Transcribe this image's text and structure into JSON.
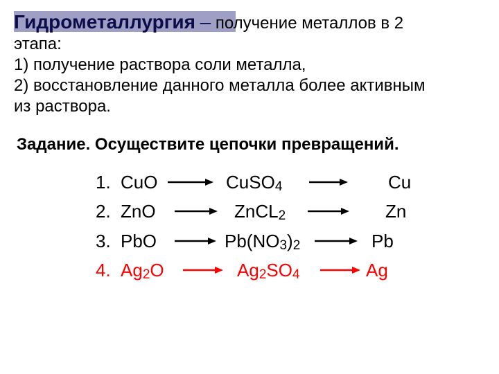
{
  "header": {
    "term": "Гидрометаллургия",
    "dash": "–",
    "definition_line1": "получение металлов в 2",
    "line2": "этапа:",
    "line3": "1) получение раствора соли металла,",
    "line4": "2) восстановление данного металла более активным",
    "line5": "из раствора."
  },
  "task": "Задание. Осуществите цепочки превращений.",
  "chains": [
    {
      "num": "1.",
      "c1_pre": "CuO",
      "c1_sub": "",
      "c2_pre": "CuSO",
      "c2_sub": "4",
      "c2_post": "",
      "c3_pre": "Cu",
      "c3_sub": "",
      "c3_post": "",
      "color": "#000000",
      "w_num": 34,
      "gap_num": 2,
      "w_c1": 62,
      "w_a1": 78,
      "pad_a1_l": 6,
      "pad_a1_r": 6,
      "w_c2": 118,
      "pad_c2_l": 0,
      "w_a2": 86,
      "pad_a2_l": 2,
      "pad_a2_r": 28,
      "w_c3": 60,
      "arrow1_len": 66,
      "arrow2_len": 56
    },
    {
      "num": "2.",
      "c1_pre": "ZnO",
      "c1_sub": "",
      "c2_pre": "ZnCL",
      "c2_sub": "2",
      "c2_post": "",
      "c3_pre": "Zn",
      "c3_sub": "",
      "c3_post": "",
      "color": "#000000",
      "w_num": 34,
      "gap_num": 2,
      "w_c1": 70,
      "w_a1": 78,
      "pad_a1_l": 8,
      "pad_a1_r": 8,
      "w_c2": 106,
      "pad_c2_l": 0,
      "w_a2": 86,
      "pad_a2_l": 0,
      "pad_a2_r": 26,
      "w_c3": 60,
      "arrow1_len": 62,
      "arrow2_len": 60
    },
    {
      "num": "3.",
      "c1_pre": "PbO",
      "c1_sub": "",
      "c2_pre": "Pb(NO",
      "c2_sub": "3",
      "c2_post": ")",
      "c2b_sub": "2",
      "c3_pre": "Pb",
      "c3_sub": "",
      "c3_post": "",
      "color": "#000000",
      "w_num": 34,
      "gap_num": 2,
      "w_c1": 70,
      "w_a1": 70,
      "pad_a1_l": 8,
      "pad_a1_r": 2,
      "w_c2": 130,
      "pad_c2_l": 0,
      "w_a2": 72,
      "pad_a2_l": 0,
      "pad_a2_r": 10,
      "w_c3": 60,
      "arrow1_len": 60,
      "arrow2_len": 62
    },
    {
      "num": "4.",
      "c1_pre": "Ag",
      "c1_sub": "2",
      "c1_post": "O",
      "c2_pre": "Ag",
      "c2_sub": "2",
      "c2_post": "SO",
      "c2b_sub": "4",
      "c3_pre": "Ag",
      "c3_sub": "",
      "c3_post": "",
      "color": "#ff0000",
      "w_num": 34,
      "gap_num": 2,
      "w_c1": 82,
      "w_a1": 72,
      "pad_a1_l": 8,
      "pad_a1_r": 6,
      "w_c2": 120,
      "pad_c2_l": 0,
      "w_a2": 66,
      "pad_a2_l": 0,
      "pad_a2_r": 0,
      "w_c3": 60,
      "arrow1_len": 58,
      "arrow2_len": 58
    }
  ],
  "colors": {
    "titlebar": "#9f9fc5",
    "term": "#0c0c4a",
    "text": "#000000",
    "highlight": "#ff0000",
    "background": "#ffffff"
  }
}
